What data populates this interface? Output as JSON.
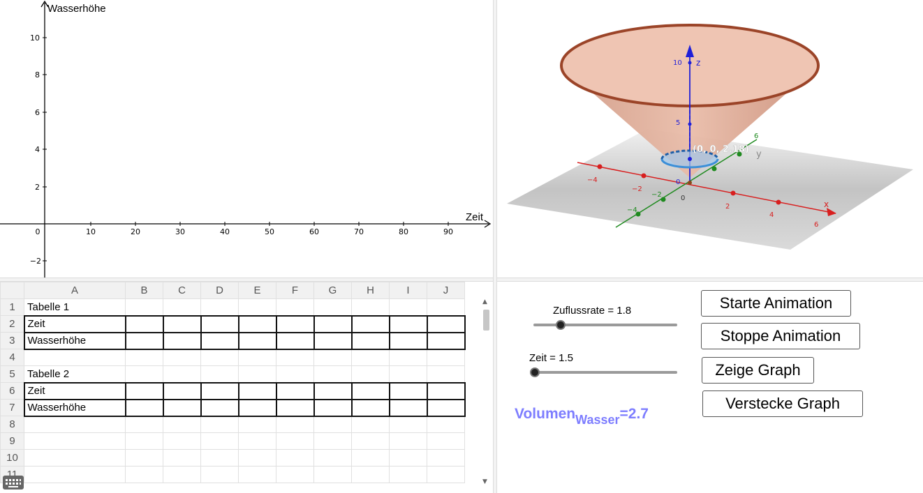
{
  "graph2d": {
    "y_axis_label": "Wasserhöhe",
    "x_axis_label": "Zeit",
    "x_ticks": [
      "0",
      "10",
      "20",
      "30",
      "40",
      "50",
      "60",
      "70",
      "80",
      "90"
    ],
    "y_ticks": [
      "10",
      "8",
      "6",
      "4",
      "2",
      "−2"
    ]
  },
  "view3d": {
    "z_label": "z",
    "y_label": "y",
    "x_label": "x",
    "z_ticks": [
      "10",
      "5",
      "0"
    ],
    "x_ticks": [
      "−4",
      "−2",
      "0",
      "2",
      "4",
      "6"
    ],
    "y_ticks": [
      "−4",
      "−2",
      "6"
    ],
    "point_label": "(0, 0, 2.18)",
    "colors": {
      "cone": "#e8b09a",
      "cone_rim": "#a0472a",
      "water": "#3b8fd8",
      "z_axis": "#1f1fd8",
      "x_axis": "#d81f1f",
      "y_axis": "#1f8a1f"
    }
  },
  "sheet": {
    "columns": [
      "A",
      "B",
      "C",
      "D",
      "E",
      "F",
      "G",
      "H",
      "I",
      "J"
    ],
    "rows": [
      "1",
      "2",
      "3",
      "4",
      "5",
      "6",
      "7",
      "8",
      "9",
      "10",
      "11"
    ],
    "cells": {
      "A1": "Tabelle 1",
      "A2": "Zeit",
      "A3": "Wasserhöhe",
      "A5": "Tabelle 2",
      "A6": "Zeit",
      "A7": "Wasserhöhe"
    }
  },
  "controls": {
    "slider1": {
      "label": "Zuflussrate = 1.8",
      "value_fraction": 0.19
    },
    "slider2": {
      "label": "Zeit = 1.5",
      "value_fraction": 0.02
    },
    "buttons": {
      "start": "Starte Animation",
      "stop": "Stoppe Animation",
      "show": "Zeige Graph",
      "hide": "Verstecke Graph"
    },
    "volume": {
      "main": "Volumen",
      "sub": "Wasser",
      "value": "=2.7"
    }
  }
}
